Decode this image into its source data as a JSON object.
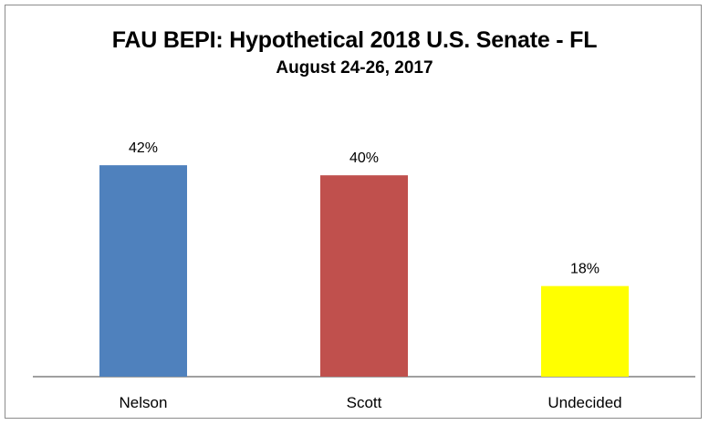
{
  "chart_data": {
    "type": "bar",
    "title": "FAU BEPI: Hypothetical 2018 U.S. Senate - FL",
    "subtitle": "August 24-26, 2017",
    "categories": [
      "Nelson",
      "Scott",
      "Undecided"
    ],
    "values": [
      42,
      40,
      18
    ],
    "data_labels": [
      "42%",
      "40%",
      "18%"
    ],
    "colors": [
      "#4f81bd",
      "#c0504d",
      "#ffff00"
    ],
    "xlabel": "",
    "ylabel": "",
    "ylim": [
      0,
      50
    ],
    "y_axis_visible": false,
    "grid": false,
    "legend": "none"
  }
}
